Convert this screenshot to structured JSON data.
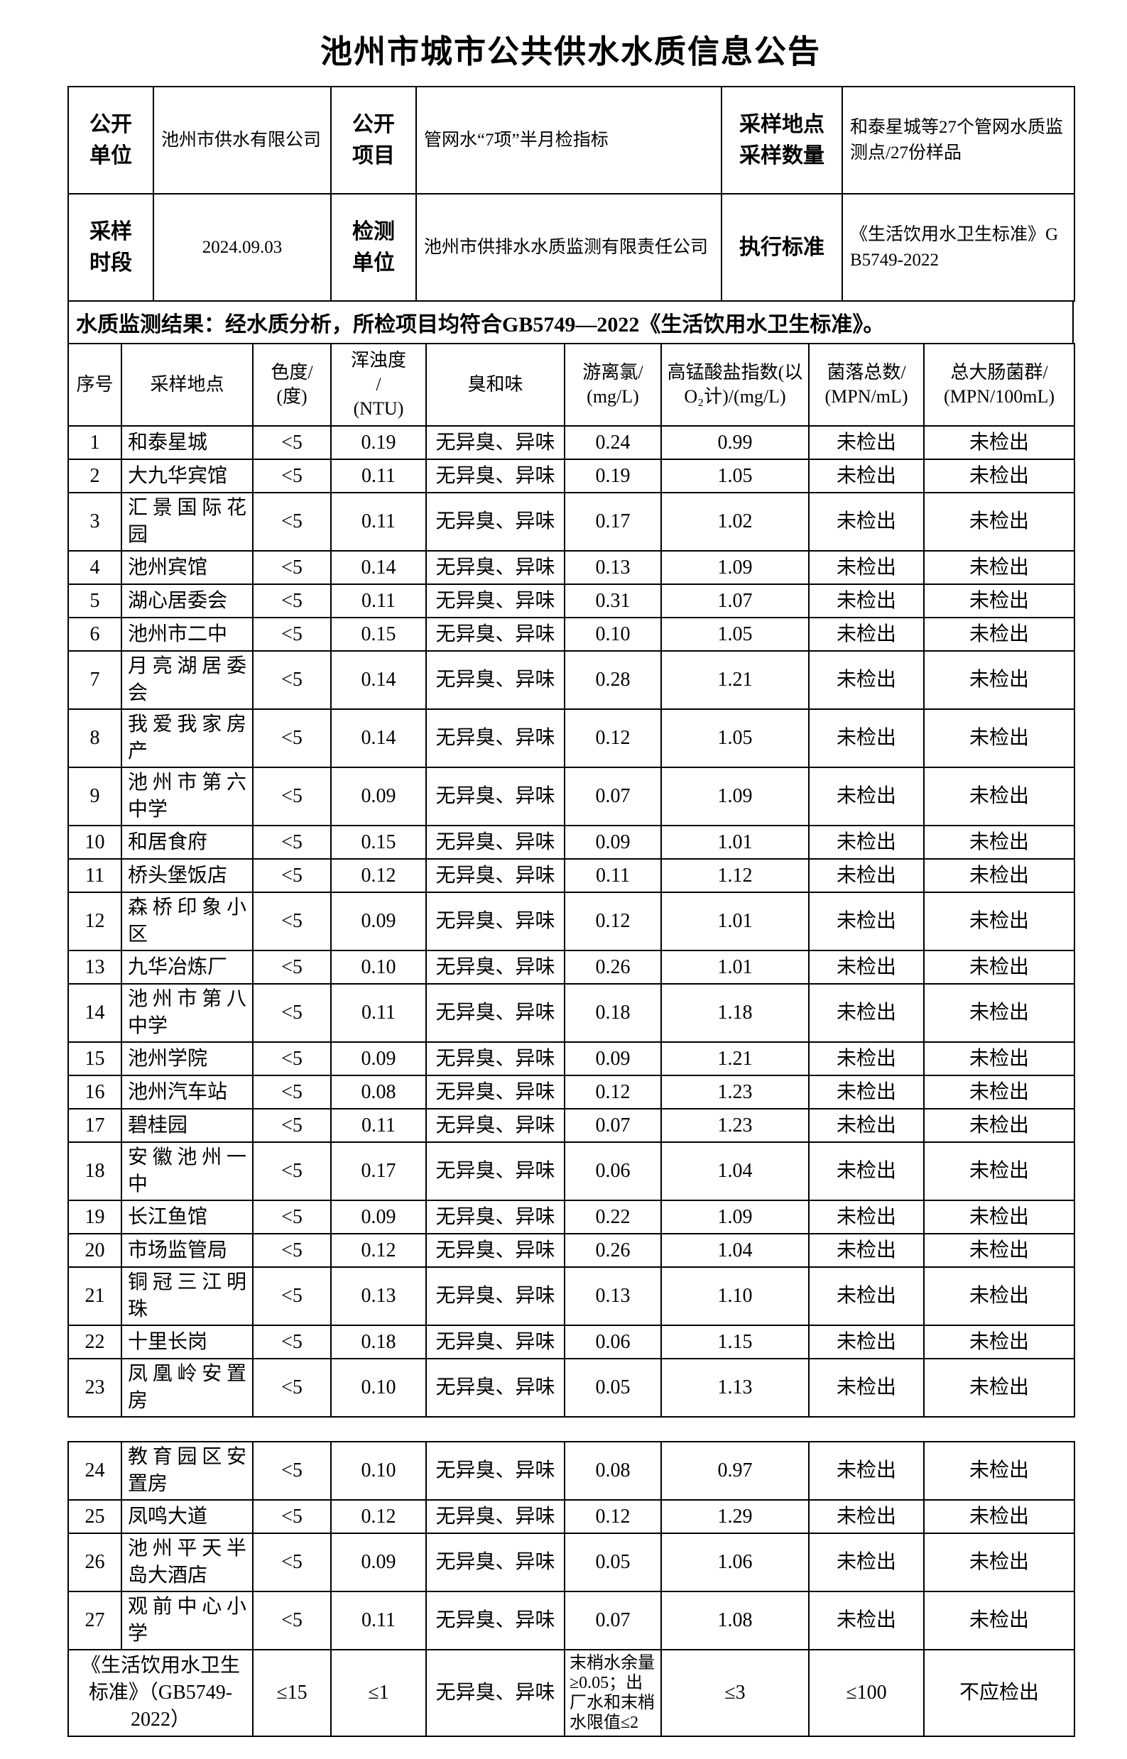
{
  "page_title": "池州市城市公共供水水质信息公告",
  "meta": {
    "disclosure_unit_label": "公开\n单位",
    "disclosure_unit_value": "池州市供水有限公司",
    "disclosure_item_label": "公开\n项目",
    "disclosure_item_value": "管网水“7项”半月检指标",
    "sampling_label": "采样地点\n采样数量",
    "sampling_value": "和泰星城等27个管网水质监测点/27份样品",
    "sampling_period_label": "采样\n时段",
    "sampling_period_value": "2024.09.03",
    "testing_unit_label": "检测\n单位",
    "testing_unit_value": "池州市供排水水质监测有限责任公司",
    "standard_label": "执行标准",
    "standard_value": "《生活饮用水卫生标准》GB5749-2022"
  },
  "notice": "水质监测结果：经水质分析，所检项目均符合GB5749—2022《生活饮用水卫生标准》。",
  "table": {
    "field_names": [
      "seq",
      "location",
      "chroma",
      "turbidity",
      "odor",
      "free-chlorine",
      "permanganate-index",
      "colony-count",
      "total-coliform"
    ],
    "headers": [
      "序号",
      "采样地点",
      "色度/\n(度)",
      "浑浊度\n/\n(NTU)",
      "臭和味",
      "游离氯/\n(mg/L)",
      "高锰酸盐指数(以\nO₂计)/(mg/L)",
      "菌落总数/\n(MPN/mL)",
      "总大肠菌群/\n(MPN/100mL)"
    ],
    "sections": [
      {
        "rows": [
          [
            "1",
            "和泰星城",
            "<5",
            "0.19",
            "无异臭、异味",
            "0.24",
            "0.99",
            "未检出",
            "未检出"
          ],
          [
            "2",
            "大九华宾馆",
            "<5",
            "0.11",
            "无异臭、异味",
            "0.19",
            "1.05",
            "未检出",
            "未检出"
          ],
          [
            "3",
            "汇景国际花园",
            "<5",
            "0.11",
            "无异臭、异味",
            "0.17",
            "1.02",
            "未检出",
            "未检出"
          ],
          [
            "4",
            "池州宾馆",
            "<5",
            "0.14",
            "无异臭、异味",
            "0.13",
            "1.09",
            "未检出",
            "未检出"
          ],
          [
            "5",
            "湖心居委会",
            "<5",
            "0.11",
            "无异臭、异味",
            "0.31",
            "1.07",
            "未检出",
            "未检出"
          ],
          [
            "6",
            "池州市二中",
            "<5",
            "0.15",
            "无异臭、异味",
            "0.10",
            "1.05",
            "未检出",
            "未检出"
          ],
          [
            "7",
            "月亮湖居委会",
            "<5",
            "0.14",
            "无异臭、异味",
            "0.28",
            "1.21",
            "未检出",
            "未检出"
          ],
          [
            "8",
            "我爱我家房产",
            "<5",
            "0.14",
            "无异臭、异味",
            "0.12",
            "1.05",
            "未检出",
            "未检出"
          ],
          [
            "9",
            "池州市第六中学",
            "<5",
            "0.09",
            "无异臭、异味",
            "0.07",
            "1.09",
            "未检出",
            "未检出"
          ],
          [
            "10",
            "和居食府",
            "<5",
            "0.15",
            "无异臭、异味",
            "0.09",
            "1.01",
            "未检出",
            "未检出"
          ],
          [
            "11",
            "桥头堡饭店",
            "<5",
            "0.12",
            "无异臭、异味",
            "0.11",
            "1.12",
            "未检出",
            "未检出"
          ],
          [
            "12",
            "森桥印象小区",
            "<5",
            "0.09",
            "无异臭、异味",
            "0.12",
            "1.01",
            "未检出",
            "未检出"
          ],
          [
            "13",
            "九华冶炼厂",
            "<5",
            "0.10",
            "无异臭、异味",
            "0.26",
            "1.01",
            "未检出",
            "未检出"
          ],
          [
            "14",
            "池州市第八中学",
            "<5",
            "0.11",
            "无异臭、异味",
            "0.18",
            "1.18",
            "未检出",
            "未检出"
          ],
          [
            "15",
            "池州学院",
            "<5",
            "0.09",
            "无异臭、异味",
            "0.09",
            "1.21",
            "未检出",
            "未检出"
          ],
          [
            "16",
            "池州汽车站",
            "<5",
            "0.08",
            "无异臭、异味",
            "0.12",
            "1.23",
            "未检出",
            "未检出"
          ],
          [
            "17",
            "碧桂园",
            "<5",
            "0.11",
            "无异臭、异味",
            "0.07",
            "1.23",
            "未检出",
            "未检出"
          ],
          [
            "18",
            "安徽池州一中",
            "<5",
            "0.17",
            "无异臭、异味",
            "0.06",
            "1.04",
            "未检出",
            "未检出"
          ],
          [
            "19",
            "长江鱼馆",
            "<5",
            "0.09",
            "无异臭、异味",
            "0.22",
            "1.09",
            "未检出",
            "未检出"
          ],
          [
            "20",
            "市场监管局",
            "<5",
            "0.12",
            "无异臭、异味",
            "0.26",
            "1.04",
            "未检出",
            "未检出"
          ],
          [
            "21",
            "铜冠三江明珠",
            "<5",
            "0.13",
            "无异臭、异味",
            "0.13",
            "1.10",
            "未检出",
            "未检出"
          ],
          [
            "22",
            "十里长岗",
            "<5",
            "0.18",
            "无异臭、异味",
            "0.06",
            "1.15",
            "未检出",
            "未检出"
          ],
          [
            "23",
            "凤凰岭安置房",
            "<5",
            "0.10",
            "无异臭、异味",
            "0.05",
            "1.13",
            "未检出",
            "未检出"
          ]
        ]
      },
      {
        "rows": [
          [
            "24",
            "教育园区安置房",
            "<5",
            "0.10",
            "无异臭、异味",
            "0.08",
            "0.97",
            "未检出",
            "未检出"
          ],
          [
            "25",
            "凤鸣大道",
            "<5",
            "0.12",
            "无异臭、异味",
            "0.12",
            "1.29",
            "未检出",
            "未检出"
          ],
          [
            "26",
            "池州平天半岛大酒店",
            "<5",
            "0.09",
            "无异臭、异味",
            "0.05",
            "1.06",
            "未检出",
            "未检出"
          ],
          [
            "27",
            "观前中心小学",
            "<5",
            "0.11",
            "无异臭、异味",
            "0.07",
            "1.08",
            "未检出",
            "未检出"
          ]
        ]
      }
    ],
    "standard_row": {
      "label": "《生活饮用水卫生标准》（GB5749-2022）",
      "chroma": "≤15",
      "turbidity": "≤1",
      "odor": "无异臭、异味",
      "free_chlorine": "末梢水余量≥0.05；出厂水和末梢水限值≤2",
      "permanganate_index": "≤3",
      "colony_count": "≤100",
      "total_coliform": "不应检出"
    }
  }
}
